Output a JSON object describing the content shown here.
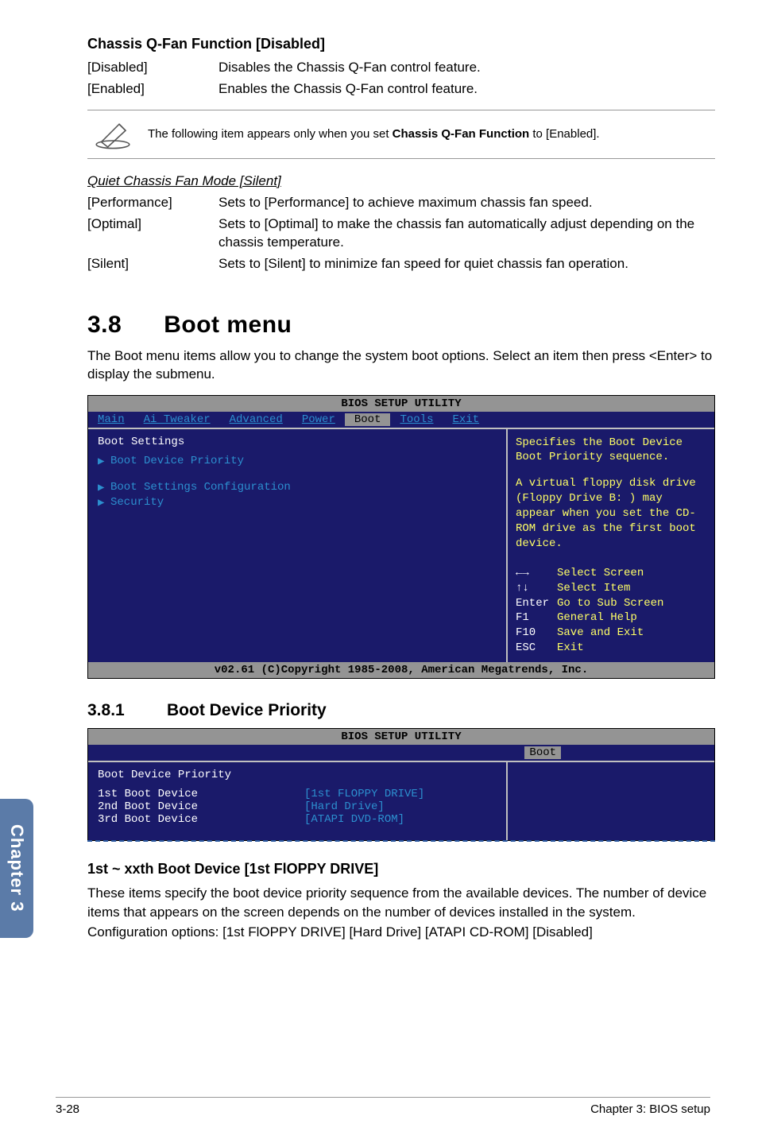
{
  "sideTab": "Chapter 3",
  "sec1": {
    "title": "Chassis Q-Fan Function [Disabled]",
    "rows": [
      {
        "label": "[Disabled]",
        "desc": "Disables the Chassis Q-Fan control feature."
      },
      {
        "label": "[Enabled]",
        "desc": "Enables the Chassis Q-Fan control feature."
      }
    ]
  },
  "note": {
    "textPrefix": "The following item appears only when you set ",
    "bold": "Chassis Q-Fan Function",
    "textSuffix": " to [Enabled]."
  },
  "quiet": {
    "title": "Quiet Chassis Fan Mode [Silent]",
    "rows": [
      {
        "label": "[Performance]",
        "desc": "Sets to [Performance] to achieve maximum chassis fan speed."
      },
      {
        "label": "[Optimal]",
        "desc": "Sets to [Optimal] to make the chassis fan automatically adjust depending on the chassis temperature."
      },
      {
        "label": "[Silent]",
        "desc": "Sets to [Silent] to minimize fan speed for quiet chassis fan operation."
      }
    ]
  },
  "bootMenu": {
    "heading": "3.8      Boot menu",
    "para": "The Boot menu items allow you to change the system boot options. Select an item then press <Enter> to display the submenu."
  },
  "bios1": {
    "title": "BIOS SETUP UTILITY",
    "menus": [
      "Main",
      "Ai Tweaker",
      "Advanced",
      "Power",
      "Boot",
      "Tools",
      "Exit"
    ],
    "activeMenu": "Boot",
    "leftHeader": "Boot Settings",
    "leftItems": [
      "Boot Device Priority",
      "Boot Settings Configuration",
      "Security"
    ],
    "help": "Specifies the Boot Device Boot Priority sequence.",
    "help2": "A virtual floppy disk drive (Floppy Drive B: ) may appear when you set the CD-ROM drive as the first boot device.",
    "nav": [
      {
        "k": "←→",
        "v": "Select Screen"
      },
      {
        "k": "↑↓",
        "v": "Select Item"
      },
      {
        "k": "Enter",
        "v": "Go to Sub Screen"
      },
      {
        "k": "F1",
        "v": "General Help"
      },
      {
        "k": "F10",
        "v": "Save and Exit"
      },
      {
        "k": "ESC",
        "v": "Exit"
      }
    ],
    "footer": "v02.61 (C)Copyright 1985-2008, American Megatrends, Inc."
  },
  "sub381": {
    "num": "3.8.1",
    "title": "Boot Device Priority"
  },
  "bios2": {
    "title": "BIOS SETUP UTILITY",
    "menu": "Boot",
    "header": "Boot Device Priority",
    "rows": [
      {
        "c1": "1st Boot Device",
        "c2": "[1st FLOPPY DRIVE]"
      },
      {
        "c1": "2nd Boot Device",
        "c2": "[Hard Drive]"
      },
      {
        "c1": "3rd Boot Device",
        "c2": "[ATAPI DVD-ROM]"
      }
    ]
  },
  "xxth": {
    "title": "1st ~ xxth Boot Device [1st FlOPPY DRIVE]",
    "p1": "These items specify the boot device priority sequence from the available devices. The number of device items that appears on the screen depends on the number of devices installed in the system.",
    "p2": "Configuration options: [1st FlOPPY DRIVE] [Hard Drive] [ATAPI CD-ROM] [Disabled]"
  },
  "footer": {
    "left": "3-28",
    "right": "Chapter 3: BIOS setup"
  }
}
